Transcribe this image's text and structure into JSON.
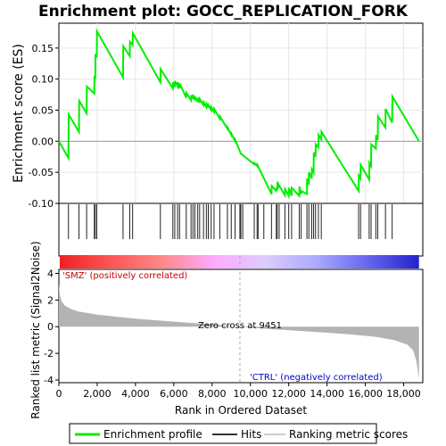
{
  "chart_data": {
    "type": "line",
    "title": "Enrichment plot: GOCC_REPLICATION_FORK",
    "top_panel": {
      "ylabel": "Enrichment score (ES)",
      "ylim": [
        -0.1,
        0.19
      ],
      "yticks": [
        -0.1,
        -0.05,
        0.0,
        0.05,
        0.1,
        0.15
      ],
      "ytick_labels": [
        "-0.10",
        "-0.05",
        "0.00",
        "0.05",
        "0.10",
        "0.15"
      ],
      "series": [
        {
          "name": "Enrichment profile",
          "color": "#00ee00",
          "x": [
            0,
            500,
            510,
            1050,
            1060,
            1450,
            1460,
            1850,
            1860,
            1900,
            1910,
            1980,
            1990,
            3350,
            3360,
            3700,
            3710,
            3850,
            3860,
            5300,
            5310,
            5950,
            5960,
            6050,
            6060,
            6200,
            6210,
            6300,
            6310,
            6650,
            6660,
            6900,
            6910,
            7000,
            7010,
            7100,
            7110,
            7250,
            7260,
            7350,
            7360,
            7550,
            7560,
            7700,
            7710,
            7800,
            7810,
            7950,
            7960,
            8100,
            8110,
            8400,
            8410,
            8800,
            8810,
            9000,
            9010,
            9200,
            9210,
            9500,
            10200,
            10210,
            10350,
            10360,
            11100,
            11110,
            11350,
            11360,
            11400,
            11410,
            11500,
            11510,
            11800,
            11810,
            12000,
            12010,
            12150,
            12160,
            12550,
            12560,
            12650,
            12660,
            12950,
            12960,
            13050,
            13060,
            13200,
            13210,
            13300,
            13310,
            13400,
            13410,
            13550,
            13560,
            13700,
            13710,
            15650,
            15660,
            15750,
            15760,
            16200,
            16210,
            16300,
            16310,
            16550,
            16560,
            16650,
            16660,
            17050,
            17060,
            17400,
            17410,
            18800
          ],
          "y": [
            0.0,
            -0.027,
            0.043,
            0.015,
            0.065,
            0.045,
            0.088,
            0.077,
            0.105,
            0.1,
            0.14,
            0.135,
            0.177,
            0.103,
            0.153,
            0.137,
            0.16,
            0.155,
            0.174,
            0.095,
            0.116,
            0.085,
            0.095,
            0.087,
            0.097,
            0.088,
            0.095,
            0.085,
            0.093,
            0.07,
            0.078,
            0.066,
            0.074,
            0.068,
            0.075,
            0.066,
            0.072,
            0.063,
            0.07,
            0.062,
            0.068,
            0.058,
            0.063,
            0.055,
            0.06,
            0.054,
            0.058,
            0.05,
            0.055,
            0.047,
            0.052,
            0.036,
            0.04,
            0.02,
            0.022,
            0.01,
            0.012,
            0.0,
            0.002,
            -0.02,
            -0.037,
            -0.035,
            -0.04,
            -0.038,
            -0.085,
            -0.072,
            -0.08,
            -0.075,
            -0.078,
            -0.065,
            -0.075,
            -0.072,
            -0.087,
            -0.077,
            -0.088,
            -0.075,
            -0.088,
            -0.075,
            -0.088,
            -0.073,
            -0.085,
            -0.08,
            -0.085,
            -0.06,
            -0.07,
            -0.05,
            -0.06,
            -0.045,
            -0.05,
            -0.018,
            -0.025,
            -0.005,
            -0.01,
            0.01,
            0.003,
            0.015,
            -0.08,
            -0.055,
            -0.06,
            -0.038,
            -0.062,
            -0.035,
            -0.04,
            -0.005,
            -0.012,
            0.01,
            0.002,
            0.04,
            0.022,
            0.052,
            0.03,
            0.072,
            0.0
          ]
        }
      ]
    },
    "hits_panel": {
      "hit_positions": [
        500,
        1050,
        1450,
        1850,
        1900,
        1980,
        3350,
        3700,
        3850,
        5300,
        5950,
        6050,
        6200,
        6300,
        6650,
        6900,
        7000,
        7100,
        7250,
        7350,
        7550,
        7700,
        7800,
        7950,
        8100,
        8400,
        8800,
        9000,
        9200,
        9450,
        9500,
        9600,
        10200,
        10350,
        10400,
        10700,
        11100,
        11350,
        11400,
        11500,
        11800,
        12000,
        12150,
        12550,
        12650,
        12950,
        13050,
        13200,
        13300,
        13400,
        13550,
        13700,
        15650,
        15750,
        16200,
        16300,
        16550,
        16650,
        17050,
        17400
      ],
      "heatmap_colors": [
        "#ee2222",
        "#ff5555",
        "#ff8888",
        "#ffaaff",
        "#ddccff",
        "#aaaaff",
        "#6666ee",
        "#2222cc"
      ]
    },
    "bottom_panel": {
      "ylabel": "Ranked list metric (Signal2Noise)",
      "xlabel": "Rank in Ordered Dataset",
      "ylim": [
        -4.2,
        4.3
      ],
      "yticks": [
        -4,
        -2,
        0,
        2,
        4
      ],
      "ytick_labels": [
        "-4",
        "-2",
        "0",
        "2",
        "4"
      ],
      "xlim": [
        0,
        19000
      ],
      "xticks": [
        0,
        2000,
        4000,
        6000,
        8000,
        10000,
        12000,
        14000,
        16000,
        18000
      ],
      "xtick_labels": [
        "0",
        "2,000",
        "4,000",
        "6,000",
        "8,000",
        "10,000",
        "12,000",
        "14,000",
        "16,000",
        "18,000"
      ],
      "metric_x": [
        0,
        50,
        150,
        300,
        600,
        1000,
        2000,
        4000,
        6000,
        8000,
        9451,
        11000,
        13000,
        15000,
        16500,
        17500,
        18200,
        18500,
        18650,
        18750,
        18800
      ],
      "metric_y": [
        3.2,
        2.4,
        1.9,
        1.6,
        1.35,
        1.15,
        0.9,
        0.6,
        0.38,
        0.18,
        0.0,
        -0.18,
        -0.35,
        -0.55,
        -0.75,
        -1.0,
        -1.35,
        -1.8,
        -2.5,
        -3.4,
        -3.9
      ],
      "zero_cross_x": 9451,
      "zero_cross_label": "Zero cross at 9451",
      "pos_label": "'SMZ' (positively correlated)",
      "neg_label": "'CTRL' (negatively correlated)"
    },
    "legend": {
      "items": [
        {
          "label": "Enrichment profile",
          "color": "#00ee00"
        },
        {
          "label": "Hits",
          "color": "#333333"
        },
        {
          "label": "Ranking metric scores",
          "color": "#cccccc"
        }
      ]
    }
  }
}
